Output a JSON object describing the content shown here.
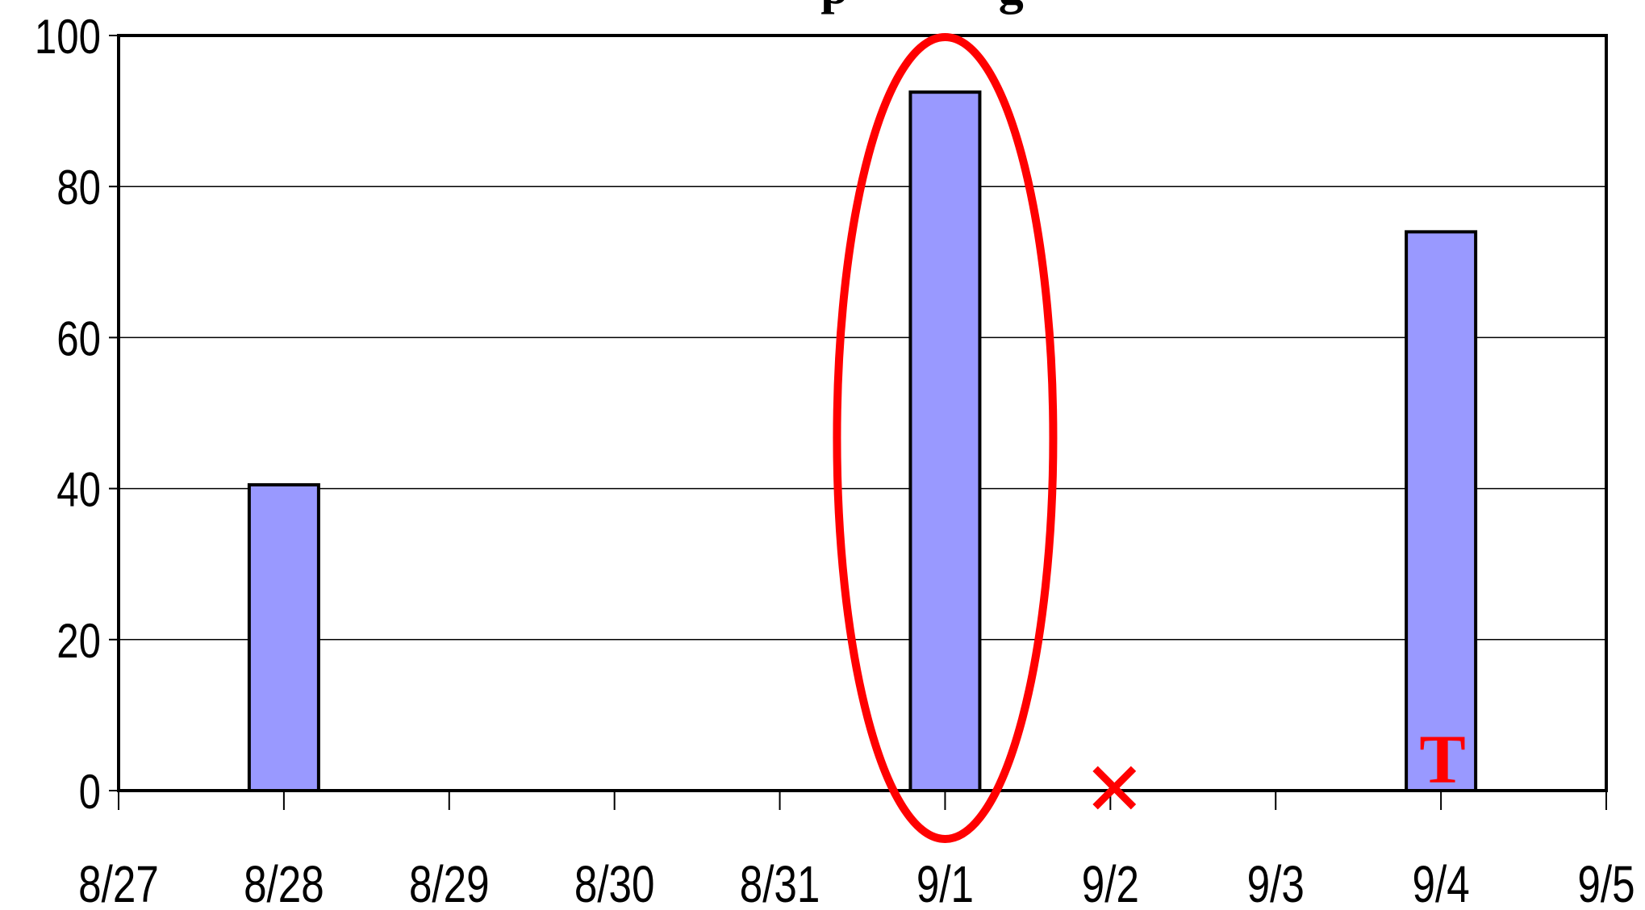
{
  "chart_data": {
    "type": "bar",
    "title_visible_fragment": "p            g",
    "categories": [
      "8/27",
      "8/28",
      "8/29",
      "8/30",
      "8/31",
      "9/1",
      "9/2",
      "9/3",
      "9/4",
      "9/5"
    ],
    "values": [
      0,
      40.5,
      0,
      0,
      0,
      92.5,
      0,
      0,
      74,
      0
    ],
    "ylim": [
      0,
      100
    ],
    "yticks": [
      "0",
      "20",
      "40",
      "60",
      "80",
      "100"
    ],
    "grid": true,
    "bar_color": "#9999ff",
    "annotations": {
      "circled_category": "9/1",
      "x_mark_category": "9/2",
      "x_mark_symbol": "✕",
      "t_mark_category": "9/4",
      "t_mark_text": "T",
      "annotation_color": "#ff0000"
    }
  }
}
